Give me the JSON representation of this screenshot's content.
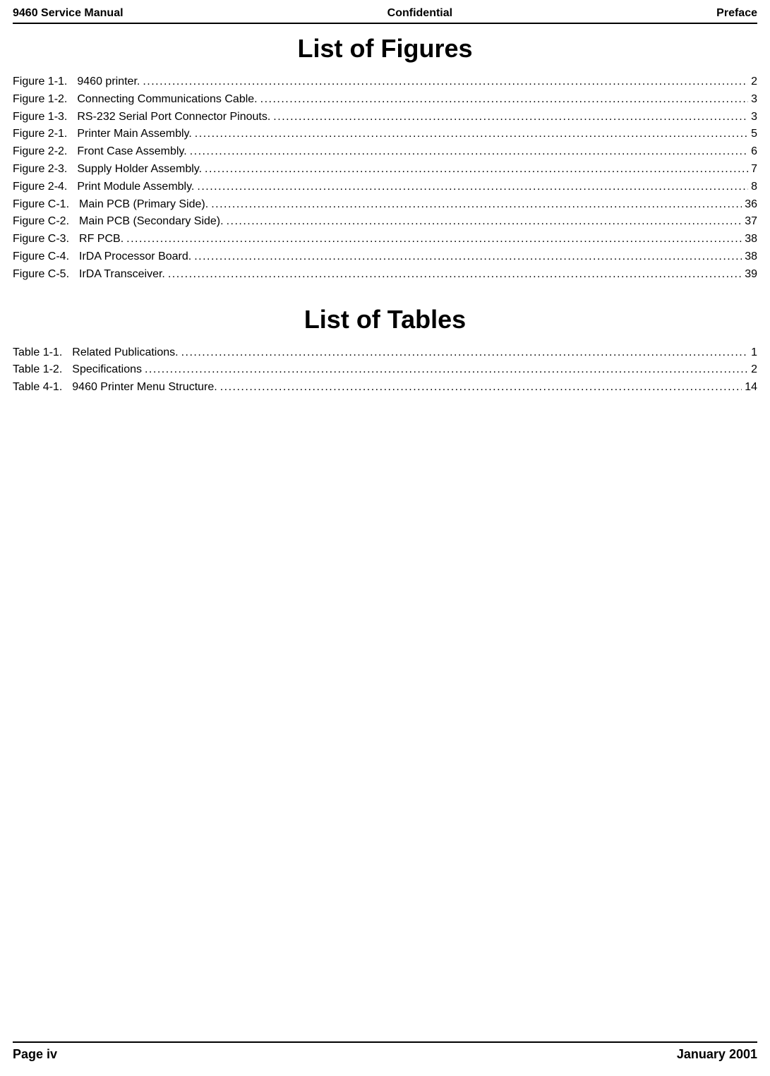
{
  "header": {
    "left": "9460 Service Manual",
    "center": "Confidential",
    "right": "Preface"
  },
  "sections": [
    {
      "title": "List of Figures",
      "entries": [
        {
          "label": "Figure 1-1.",
          "title": "9460 printer.",
          "page": "2"
        },
        {
          "label": "Figure 1-2.",
          "title": "Connecting Communications Cable.",
          "page": "3"
        },
        {
          "label": "Figure 1-3.",
          "title": "RS-232 Serial Port Connector Pinouts.",
          "page": "3"
        },
        {
          "label": "Figure 2-1.",
          "title": "Printer Main Assembly.",
          "page": "5"
        },
        {
          "label": "Figure 2-2.",
          "title": "Front Case Assembly.",
          "page": "6"
        },
        {
          "label": "Figure 2-3.",
          "title": "Supply Holder Assembly.",
          "page": "7"
        },
        {
          "label": "Figure 2-4.",
          "title": "Print Module Assembly.",
          "page": "8"
        },
        {
          "label": "Figure C-1.",
          "title": " Main PCB (Primary Side).",
          "page": "36"
        },
        {
          "label": "Figure C-2.",
          "title": " Main PCB (Secondary Side).",
          "page": "37"
        },
        {
          "label": "Figure C-3.",
          "title": " RF PCB.",
          "page": "38"
        },
        {
          "label": "Figure C-4.",
          "title": " IrDA Processor Board.",
          "page": "38"
        },
        {
          "label": "Figure C-5.",
          "title": " IrDA Transceiver.",
          "page": "39"
        }
      ]
    },
    {
      "title": "List of Tables",
      "entries": [
        {
          "label": "Table 1-1.",
          "title": "Related Publications.",
          "page": "1"
        },
        {
          "label": "Table 1-2.",
          "title": "Specifications",
          "page": "2"
        },
        {
          "label": "Table 4-1.",
          "title": "9460 Printer Menu Structure.",
          "page": "14"
        }
      ]
    }
  ],
  "footer": {
    "left": "Page iv",
    "right": "January 2001"
  },
  "colors": {
    "text": "#000000",
    "background": "#ffffff",
    "rule": "#000000"
  }
}
